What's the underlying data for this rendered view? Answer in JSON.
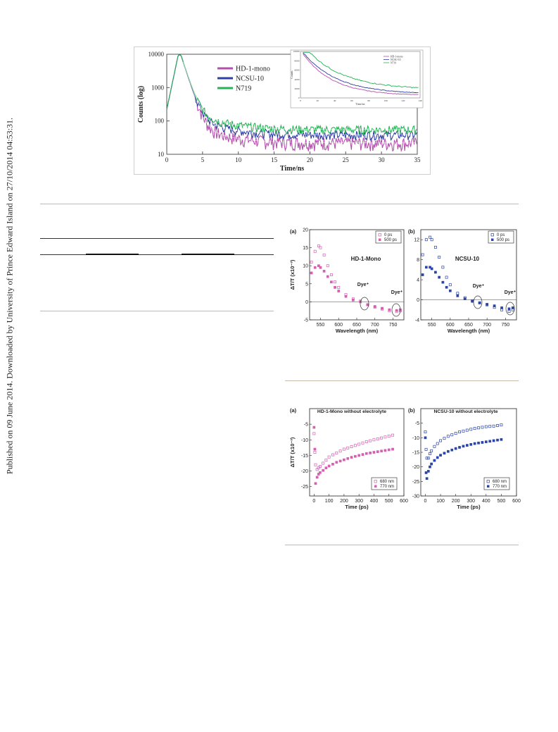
{
  "sidebar": {
    "text": "Published on 09 June 2014. Downloaded by University of Prince Edward Island on 27/10/2014 04:53:31."
  },
  "colors": {
    "magenta": "#b54fae",
    "blue": "#2f3fa3",
    "green": "#27b257",
    "pink": "#d65fb2",
    "darkblue": "#2b45a8",
    "rule": "#c9b7a7"
  },
  "chart_data": [
    {
      "type": "line",
      "panel": "main",
      "xlabel": "Time/ns",
      "ylabel": "Counts (log)",
      "xlim": [
        0,
        35
      ],
      "ylim": [
        10,
        10000
      ],
      "yscale": "log",
      "xticks": [
        "0",
        "5",
        "10",
        "15",
        "20",
        "25",
        "30",
        "35"
      ],
      "yticks": [
        "10",
        "100",
        "1000",
        "10000"
      ],
      "legend_position": "top-center",
      "series": [
        {
          "name": "HD-1-mono",
          "color": "#b54fae",
          "tail": 22
        },
        {
          "name": "NCSU-10",
          "color": "#2f3fa3",
          "tail": 38
        },
        {
          "name": "N719",
          "color": "#27b257",
          "tail": 55
        }
      ]
    },
    {
      "type": "line",
      "panel": "inset",
      "xlabel": "Time/ns",
      "ylabel": "Counts",
      "xlim": [
        0,
        140
      ],
      "ylim": [
        0,
        10000
      ],
      "xticks": [
        "0",
        "20",
        "40",
        "60",
        "80",
        "100",
        "120",
        "140"
      ],
      "yticks": [
        "0",
        "2000",
        "4000",
        "6000",
        "8000",
        "10000"
      ],
      "legend_position": "top-right",
      "series": [
        {
          "name": "HD-1-mono",
          "color": "#b54fae"
        },
        {
          "name": "NCSU-10",
          "color": "#2f3fa3"
        },
        {
          "name": "N719",
          "color": "#27b257"
        }
      ]
    },
    {
      "type": "scatter",
      "panel": "ta-a",
      "panel_label": "(a)",
      "title": "HD-1-Mono",
      "xlabel": "Wavelength (nm)",
      "ylabel": "ΔT/T (x10⁻³)",
      "xlim": [
        520,
        780
      ],
      "ylim": [
        -5,
        20
      ],
      "xticks": [
        "550",
        "600",
        "650",
        "700",
        "750"
      ],
      "yticks": [
        "-5",
        "0",
        "5",
        "10",
        "15",
        "20"
      ],
      "legend_position": "top-right",
      "annotations": [
        "Dye⁺",
        "Dye⁺"
      ],
      "series": [
        {
          "name": "0 ps",
          "marker": "open-square",
          "x": [
            525,
            535,
            545,
            550,
            560,
            570,
            580,
            590,
            600,
            620,
            640,
            660,
            680,
            700,
            720,
            740,
            760,
            770
          ],
          "y": [
            11,
            14,
            15.5,
            15,
            13,
            10,
            7.5,
            5.5,
            4,
            2,
            0.8,
            0.2,
            -0.8,
            -1.5,
            -2,
            -2.5,
            -2.7,
            -2.5
          ]
        },
        {
          "name": "500 ps",
          "marker": "filled-square",
          "x": [
            525,
            535,
            545,
            550,
            560,
            570,
            580,
            590,
            600,
            620,
            640,
            660,
            680,
            700,
            720,
            740,
            760,
            770
          ],
          "y": [
            8,
            9.5,
            10,
            9.5,
            8.5,
            7,
            5.5,
            4,
            3,
            1.5,
            0.5,
            0,
            -0.8,
            -1.3,
            -1.8,
            -2.2,
            -2.4,
            -2.2
          ]
        }
      ]
    },
    {
      "type": "scatter",
      "panel": "ta-b",
      "panel_label": "(b)",
      "title": "NCSU-10",
      "xlabel": "Wavelength (nm)",
      "ylabel": "",
      "xlim": [
        520,
        780
      ],
      "ylim": [
        -4,
        14
      ],
      "xticks": [
        "550",
        "600",
        "650",
        "700",
        "750"
      ],
      "yticks": [
        "-4",
        "0",
        "4",
        "8",
        "12"
      ],
      "legend_position": "top-right",
      "annotations": [
        "Dye⁺",
        "Dye⁺"
      ],
      "series": [
        {
          "name": "0 ps",
          "marker": "open-square",
          "x": [
            525,
            535,
            545,
            550,
            560,
            570,
            580,
            590,
            600,
            620,
            640,
            660,
            680,
            700,
            720,
            740,
            760,
            770
          ],
          "y": [
            9,
            12,
            12.5,
            12,
            10.5,
            8.5,
            6.5,
            4.5,
            3,
            1.3,
            0.4,
            -0.2,
            -0.6,
            -1,
            -1.5,
            -2,
            -2.3,
            -2
          ]
        },
        {
          "name": "500 ps",
          "marker": "filled-square",
          "x": [
            525,
            535,
            545,
            550,
            560,
            570,
            580,
            590,
            600,
            620,
            640,
            660,
            680,
            700,
            720,
            740,
            760,
            770
          ],
          "y": [
            5,
            6.5,
            6.5,
            6.2,
            5.5,
            4.5,
            3.5,
            2.5,
            1.8,
            0.8,
            0.2,
            -0.3,
            -0.6,
            -0.9,
            -1.2,
            -1.6,
            -1.8,
            -1.6
          ]
        }
      ]
    },
    {
      "type": "scatter",
      "panel": "kin-a",
      "panel_label": "(a)",
      "title": "HD-1-Mono without electrolyte",
      "xlabel": "Time (ps)",
      "ylabel": "ΔT/T (x10⁻³)",
      "xlim": [
        -30,
        600
      ],
      "ylim": [
        -28,
        0
      ],
      "xticks": [
        "0",
        "100",
        "200",
        "300",
        "400",
        "500",
        "600"
      ],
      "yticks": [
        "-25",
        "-20",
        "-15",
        "-10",
        "-5"
      ],
      "legend_position": "bottom-right",
      "series": [
        {
          "name": "680 nm",
          "marker": "open-square",
          "x": [
            0,
            5,
            10,
            20,
            30,
            40,
            60,
            80,
            100,
            125,
            150,
            175,
            200,
            225,
            250,
            275,
            300,
            325,
            350,
            375,
            400,
            425,
            450,
            475,
            500,
            525
          ],
          "y": [
            -8,
            -14,
            -18,
            -19.5,
            -19,
            -18.5,
            -17.5,
            -16.5,
            -15.5,
            -14.8,
            -14.2,
            -13.6,
            -13,
            -12.6,
            -12.2,
            -11.8,
            -11.4,
            -11,
            -10.6,
            -10.3,
            -10,
            -9.7,
            -9.4,
            -9.1,
            -8.8,
            -8.5
          ]
        },
        {
          "name": "770 nm",
          "marker": "filled-square",
          "x": [
            0,
            5,
            10,
            20,
            30,
            40,
            60,
            80,
            100,
            125,
            150,
            175,
            200,
            225,
            250,
            275,
            300,
            325,
            350,
            375,
            400,
            425,
            450,
            475,
            500,
            525
          ],
          "y": [
            -6,
            -13,
            -24,
            -22,
            -21,
            -20.5,
            -19.8,
            -19,
            -18.4,
            -17.8,
            -17.2,
            -16.8,
            -16.4,
            -16,
            -15.6,
            -15.3,
            -15,
            -14.7,
            -14.4,
            -14.2,
            -14,
            -13.8,
            -13.6,
            -13.4,
            -13.2,
            -13
          ]
        }
      ]
    },
    {
      "type": "scatter",
      "panel": "kin-b",
      "panel_label": "(b)",
      "title": "NCSU-10 without electrolyte",
      "xlabel": "Time (ps)",
      "ylabel": "",
      "xlim": [
        -30,
        600
      ],
      "ylim": [
        -30,
        0
      ],
      "xticks": [
        "0",
        "100",
        "200",
        "300",
        "400",
        "500",
        "600"
      ],
      "yticks": [
        "-30",
        "-25",
        "-20",
        "-15",
        "-10",
        "-5"
      ],
      "legend_position": "bottom-right",
      "series": [
        {
          "name": "680 nm",
          "marker": "open-square",
          "x": [
            0,
            5,
            10,
            20,
            30,
            40,
            60,
            80,
            100,
            125,
            150,
            175,
            200,
            225,
            250,
            275,
            300,
            325,
            350,
            375,
            400,
            425,
            450,
            475,
            500
          ],
          "y": [
            -8,
            -14,
            -17,
            -17,
            -15.5,
            -14.5,
            -13,
            -12,
            -11,
            -10.2,
            -9.5,
            -9,
            -8.5,
            -8,
            -7.7,
            -7.4,
            -7.1,
            -6.8,
            -6.6,
            -6.4,
            -6.2,
            -6.1,
            -6,
            -5.8,
            -5.6
          ]
        },
        {
          "name": "770 nm",
          "marker": "filled-square",
          "x": [
            0,
            5,
            10,
            20,
            30,
            40,
            60,
            80,
            100,
            125,
            150,
            175,
            200,
            225,
            250,
            275,
            300,
            325,
            350,
            375,
            400,
            425,
            450,
            475,
            500
          ],
          "y": [
            -10,
            -22,
            -24,
            -21.5,
            -20,
            -19,
            -17.8,
            -16.8,
            -16,
            -15.3,
            -14.7,
            -14.2,
            -13.7,
            -13.3,
            -12.9,
            -12.6,
            -12.3,
            -12,
            -11.8,
            -11.6,
            -11.4,
            -11.2,
            -11,
            -10.8,
            -10.6
          ]
        }
      ]
    }
  ]
}
